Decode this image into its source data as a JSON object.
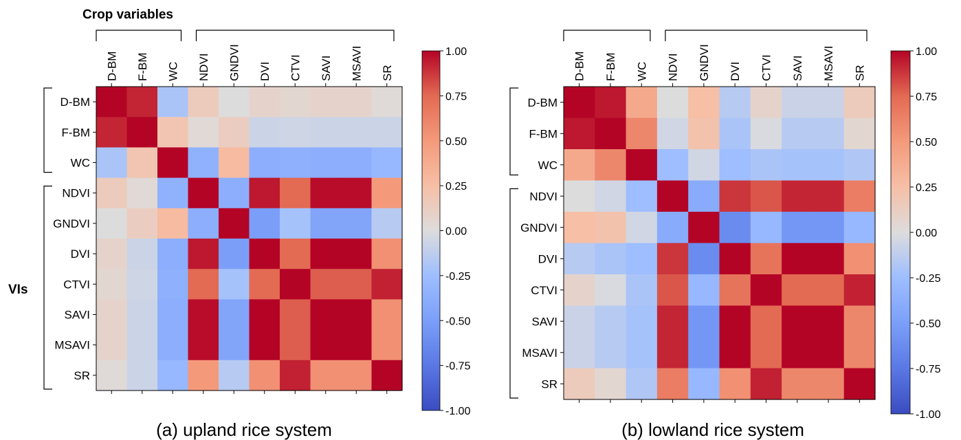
{
  "figure": {
    "crop_group_label": "Crop variables",
    "vis_group_label": "VIs"
  },
  "chart_data": [
    {
      "type": "heatmap",
      "caption": "(a) upland rice system",
      "variables": [
        "D-BM",
        "F-BM",
        "WC",
        "NDVI",
        "GNDVI",
        "DVI",
        "CTVI",
        "SAVI",
        "MSAVI",
        "SR"
      ],
      "colorbar": {
        "min": -1.0,
        "max": 1.0,
        "colormap": "coolwarm",
        "ticks": [
          "1.00",
          "0.75",
          "0.50",
          "0.25",
          "0.00",
          "-0.25",
          "-0.50",
          "-0.75",
          "-1.00"
        ]
      },
      "matrix": [
        [
          1.0,
          0.92,
          -0.2,
          0.15,
          0.0,
          0.08,
          0.05,
          0.08,
          0.08,
          0.02
        ],
        [
          0.92,
          1.0,
          0.2,
          0.03,
          0.13,
          -0.07,
          -0.06,
          -0.07,
          -0.07,
          -0.07
        ],
        [
          -0.2,
          0.2,
          1.0,
          -0.35,
          0.28,
          -0.38,
          -0.36,
          -0.38,
          -0.38,
          -0.3
        ],
        [
          0.15,
          0.03,
          -0.35,
          1.0,
          -0.38,
          0.95,
          0.75,
          0.98,
          0.98,
          0.5
        ],
        [
          0.0,
          0.13,
          0.28,
          -0.38,
          1.0,
          -0.5,
          -0.22,
          -0.45,
          -0.45,
          -0.15
        ],
        [
          0.08,
          -0.07,
          -0.38,
          0.95,
          -0.5,
          1.0,
          0.75,
          1.0,
          1.0,
          0.55
        ],
        [
          0.05,
          -0.06,
          -0.36,
          0.75,
          -0.22,
          0.75,
          1.0,
          0.78,
          0.78,
          0.93
        ],
        [
          0.08,
          -0.07,
          -0.38,
          0.98,
          -0.45,
          1.0,
          0.78,
          1.0,
          1.0,
          0.55
        ],
        [
          0.08,
          -0.07,
          -0.38,
          0.98,
          -0.45,
          1.0,
          0.78,
          1.0,
          1.0,
          0.55
        ],
        [
          0.02,
          -0.07,
          -0.3,
          0.5,
          -0.15,
          0.55,
          0.93,
          0.55,
          0.55,
          1.0
        ]
      ]
    },
    {
      "type": "heatmap",
      "caption": "(b) lowland rice system",
      "variables": [
        "D-BM",
        "F-BM",
        "WC",
        "NDVI",
        "GNDVI",
        "DVI",
        "CTVI",
        "SAVI",
        "MSAVI",
        "SR"
      ],
      "colorbar": {
        "min": -1.0,
        "max": 1.0,
        "colormap": "coolwarm",
        "ticks": [
          "1.00",
          "0.75",
          "0.50",
          "0.25",
          "0.00",
          "-0.25",
          "-0.50",
          "-0.75",
          "-1.00"
        ]
      },
      "matrix": [
        [
          1.0,
          0.95,
          0.4,
          0.0,
          0.25,
          -0.15,
          0.08,
          -0.08,
          -0.08,
          0.15
        ],
        [
          0.95,
          1.0,
          0.6,
          -0.05,
          0.22,
          -0.2,
          -0.02,
          -0.15,
          -0.15,
          0.05
        ],
        [
          0.4,
          0.6,
          1.0,
          -0.25,
          -0.05,
          -0.25,
          -0.2,
          -0.22,
          -0.22,
          -0.18
        ],
        [
          0.0,
          -0.05,
          -0.25,
          1.0,
          -0.4,
          0.88,
          0.8,
          0.92,
          0.92,
          0.65
        ],
        [
          0.25,
          0.22,
          -0.05,
          -0.4,
          1.0,
          -0.62,
          -0.3,
          -0.55,
          -0.55,
          -0.3
        ],
        [
          -0.15,
          -0.2,
          -0.25,
          0.88,
          -0.62,
          1.0,
          0.7,
          1.0,
          1.0,
          0.55
        ],
        [
          0.08,
          -0.02,
          -0.2,
          0.8,
          -0.3,
          0.7,
          1.0,
          0.75,
          0.75,
          0.93
        ],
        [
          -0.08,
          -0.15,
          -0.22,
          0.92,
          -0.55,
          1.0,
          0.75,
          1.0,
          1.0,
          0.6
        ],
        [
          -0.08,
          -0.15,
          -0.22,
          0.92,
          -0.55,
          1.0,
          0.75,
          1.0,
          1.0,
          0.6
        ],
        [
          0.15,
          0.05,
          -0.18,
          0.65,
          -0.3,
          0.55,
          0.93,
          0.6,
          0.6,
          1.0
        ]
      ]
    }
  ]
}
